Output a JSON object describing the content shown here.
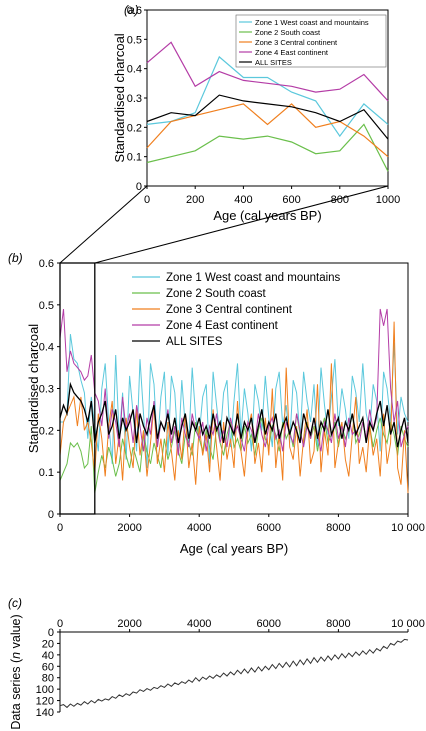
{
  "colors": {
    "zone1": "#5bc8dc",
    "zone2": "#6abf4b",
    "zone3": "#f07f1e",
    "zone4": "#b43ca6",
    "all": "#000000",
    "series": "#333333"
  },
  "chart_data": [
    {
      "panel_label": "(a)",
      "type": "line",
      "xlabel": "Age (cal years BP)",
      "ylabel": "Standardised charcoal",
      "xlim": [
        0,
        1000
      ],
      "ylim": [
        0,
        0.6
      ],
      "xticks": [
        0,
        200,
        400,
        600,
        800,
        1000
      ],
      "yticks": [
        0,
        0.1,
        0.2,
        0.3,
        0.4,
        0.5,
        0.6
      ],
      "legend": "top-right",
      "x": [
        0,
        100,
        200,
        300,
        400,
        500,
        600,
        700,
        800,
        900,
        1000
      ],
      "series": [
        {
          "name": "Zone 1 West coast and mountains",
          "color_key": "zone1",
          "values": [
            0.21,
            0.22,
            0.25,
            0.44,
            0.37,
            0.37,
            0.32,
            0.29,
            0.17,
            0.28,
            0.21
          ]
        },
        {
          "name": "Zone 2 South coast",
          "color_key": "zone2",
          "values": [
            0.08,
            0.1,
            0.12,
            0.17,
            0.16,
            0.17,
            0.15,
            0.11,
            0.12,
            0.21,
            0.05
          ]
        },
        {
          "name": "Zone 3 Central continent",
          "color_key": "zone3",
          "values": [
            0.13,
            0.22,
            0.24,
            0.26,
            0.28,
            0.21,
            0.28,
            0.2,
            0.22,
            0.17,
            0.1
          ]
        },
        {
          "name": "Zone 4 East continent",
          "color_key": "zone4",
          "values": [
            0.42,
            0.49,
            0.34,
            0.39,
            0.36,
            0.35,
            0.34,
            0.32,
            0.33,
            0.38,
            0.29
          ]
        },
        {
          "name": "ALL SITES",
          "color_key": "all",
          "values": [
            0.22,
            0.25,
            0.24,
            0.31,
            0.29,
            0.28,
            0.27,
            0.25,
            0.22,
            0.26,
            0.16
          ]
        }
      ]
    },
    {
      "panel_label": "(b)",
      "type": "line",
      "xlabel": "Age (cal years BP)",
      "ylabel": "Standardised charcoal",
      "xlim": [
        0,
        10000
      ],
      "ylim": [
        0,
        0.6
      ],
      "xticks": [
        0,
        2000,
        4000,
        6000,
        8000,
        10000
      ],
      "xtick_labels": [
        "0",
        "2000",
        "4000",
        "6000",
        "8000",
        "10 000"
      ],
      "yticks": [
        0,
        0.1,
        0.2,
        0.3,
        0.4,
        0.5,
        0.6
      ],
      "legend": "top-right",
      "highlight_range": [
        0,
        1000
      ],
      "x_step": 100,
      "series": [
        {
          "name": "Zone 1 West coast and mountains",
          "color_key": "zone1",
          "values": [
            0.22,
            0.22,
            0.24,
            0.43,
            0.37,
            0.36,
            0.32,
            0.29,
            0.18,
            0.28,
            0.21,
            0.15,
            0.3,
            0.36,
            0.22,
            0.12,
            0.38,
            0.18,
            0.29,
            0.13,
            0.33,
            0.24,
            0.15,
            0.37,
            0.24,
            0.11,
            0.36,
            0.31,
            0.16,
            0.28,
            0.34,
            0.14,
            0.33,
            0.29,
            0.15,
            0.32,
            0.21,
            0.17,
            0.35,
            0.23,
            0.19,
            0.28,
            0.31,
            0.12,
            0.34,
            0.26,
            0.18,
            0.29,
            0.32,
            0.16,
            0.27,
            0.36,
            0.19,
            0.3,
            0.24,
            0.15,
            0.31,
            0.27,
            0.2,
            0.33,
            0.23,
            0.16,
            0.3,
            0.34,
            0.21,
            0.26,
            0.17,
            0.32,
            0.29,
            0.18,
            0.34,
            0.27,
            0.22,
            0.31,
            0.16,
            0.35,
            0.26,
            0.19,
            0.28,
            0.37,
            0.21,
            0.3,
            0.25,
            0.18,
            0.33,
            0.29,
            0.22,
            0.36,
            0.24,
            0.2,
            0.31,
            0.27,
            0.15,
            0.34,
            0.3,
            0.22,
            0.41,
            0.19,
            0.28,
            0.24,
            0.22
          ]
        },
        {
          "name": "Zone 2 South coast",
          "color_key": "zone2",
          "values": [
            0.08,
            0.1,
            0.12,
            0.17,
            0.16,
            0.17,
            0.15,
            0.11,
            0.12,
            0.21,
            0.05,
            0.1,
            0.14,
            0.11,
            0.16,
            0.13,
            0.09,
            0.12,
            0.18,
            0.14,
            0.11,
            0.16,
            0.13,
            0.1,
            0.19,
            0.15,
            0.12,
            0.17,
            0.14,
            0.11,
            0.18,
            0.13,
            0.16,
            0.2,
            0.15,
            0.12,
            0.19,
            0.17,
            0.14,
            0.22,
            0.18,
            0.15,
            0.2,
            0.16,
            0.13,
            0.21,
            0.17,
            0.14,
            0.19,
            0.22,
            0.16,
            0.18,
            0.15,
            0.21,
            0.17,
            0.19,
            0.14,
            0.2,
            0.23,
            0.18,
            0.16,
            0.21,
            0.19,
            0.15,
            0.22,
            0.18,
            0.2,
            0.16,
            0.24,
            0.19,
            0.17,
            0.22,
            0.18,
            0.21,
            0.15,
            0.2,
            0.23,
            0.17,
            0.19,
            0.22,
            0.16,
            0.21,
            0.18,
            0.2,
            0.24,
            0.17,
            0.19,
            0.22,
            0.18,
            0.21,
            0.16,
            0.2,
            0.23,
            0.19,
            0.17,
            0.22,
            0.19,
            0.14,
            0.21,
            0.18,
            0.16
          ]
        },
        {
          "name": "Zone 3 Central continent",
          "color_key": "zone3",
          "values": [
            0.14,
            0.22,
            0.24,
            0.26,
            0.28,
            0.21,
            0.28,
            0.2,
            0.22,
            0.17,
            0.1,
            0.24,
            0.18,
            0.09,
            0.21,
            0.27,
            0.12,
            0.19,
            0.08,
            0.23,
            0.16,
            0.11,
            0.25,
            0.14,
            0.2,
            0.09,
            0.17,
            0.26,
            0.12,
            0.18,
            0.1,
            0.22,
            0.15,
            0.08,
            0.2,
            0.13,
            0.24,
            0.11,
            0.17,
            0.07,
            0.21,
            0.14,
            0.19,
            0.1,
            0.25,
            0.16,
            0.08,
            0.22,
            0.13,
            0.18,
            0.11,
            0.27,
            0.15,
            0.09,
            0.2,
            0.24,
            0.12,
            0.17,
            0.1,
            0.23,
            0.14,
            0.3,
            0.11,
            0.19,
            0.08,
            0.35,
            0.16,
            0.13,
            0.21,
            0.09,
            0.18,
            0.25,
            0.12,
            0.15,
            0.31,
            0.1,
            0.2,
            0.14,
            0.36,
            0.11,
            0.17,
            0.22,
            0.13,
            0.09,
            0.19,
            0.28,
            0.12,
            0.16,
            0.1,
            0.21,
            0.14,
            0.18,
            0.09,
            0.24,
            0.12,
            0.17,
            0.46,
            0.11,
            0.07,
            0.2,
            0.05
          ]
        },
        {
          "name": "Zone 4 East continent",
          "color_key": "zone4",
          "values": [
            0.42,
            0.49,
            0.34,
            0.39,
            0.36,
            0.35,
            0.34,
            0.32,
            0.33,
            0.38,
            0.29,
            0.27,
            0.21,
            0.3,
            0.18,
            0.25,
            0.22,
            0.16,
            0.28,
            0.2,
            0.24,
            0.17,
            0.26,
            0.21,
            0.15,
            0.23,
            0.19,
            0.27,
            0.16,
            0.22,
            0.2,
            0.25,
            0.17,
            0.21,
            0.14,
            0.23,
            0.19,
            0.16,
            0.24,
            0.2,
            0.18,
            0.22,
            0.15,
            0.21,
            0.19,
            0.24,
            0.17,
            0.2,
            0.16,
            0.23,
            0.19,
            0.21,
            0.18,
            0.15,
            0.22,
            0.2,
            0.17,
            0.24,
            0.19,
            0.16,
            0.21,
            0.23,
            0.18,
            0.2,
            0.15,
            0.22,
            0.19,
            0.17,
            0.24,
            0.2,
            0.16,
            0.21,
            0.18,
            0.23,
            0.19,
            0.15,
            0.22,
            0.2,
            0.17,
            0.24,
            0.18,
            0.21,
            0.16,
            0.23,
            0.19,
            0.2,
            0.17,
            0.22,
            0.18,
            0.25,
            0.2,
            0.23,
            0.49,
            0.45,
            0.49,
            0.3,
            0.22,
            0.27,
            0.16,
            0.19,
            0.21
          ]
        },
        {
          "name": "ALL SITES",
          "color_key": "all",
          "values": [
            0.23,
            0.26,
            0.24,
            0.31,
            0.29,
            0.28,
            0.27,
            0.25,
            0.22,
            0.27,
            0.17,
            0.22,
            0.24,
            0.27,
            0.19,
            0.21,
            0.25,
            0.18,
            0.23,
            0.2,
            0.22,
            0.25,
            0.17,
            0.24,
            0.21,
            0.19,
            0.23,
            0.26,
            0.18,
            0.22,
            0.2,
            0.24,
            0.19,
            0.23,
            0.17,
            0.21,
            0.24,
            0.18,
            0.22,
            0.2,
            0.23,
            0.19,
            0.21,
            0.18,
            0.24,
            0.2,
            0.22,
            0.17,
            0.23,
            0.21,
            0.19,
            0.24,
            0.18,
            0.22,
            0.2,
            0.23,
            0.17,
            0.21,
            0.25,
            0.19,
            0.22,
            0.2,
            0.24,
            0.18,
            0.21,
            0.23,
            0.19,
            0.22,
            0.2,
            0.17,
            0.24,
            0.21,
            0.19,
            0.23,
            0.18,
            0.22,
            0.2,
            0.25,
            0.19,
            0.21,
            0.23,
            0.18,
            0.22,
            0.2,
            0.24,
            0.19,
            0.21,
            0.23,
            0.17,
            0.22,
            0.2,
            0.24,
            0.27,
            0.21,
            0.26,
            0.19,
            0.22,
            0.16,
            0.2,
            0.23,
            0.17
          ]
        }
      ]
    },
    {
      "panel_label": "(c)",
      "type": "line",
      "xlabel": "",
      "ylabel": "Data series (n value)",
      "ylabel_parts": [
        "Data series (",
        "n",
        " value)"
      ],
      "xlim": [
        0,
        10000
      ],
      "ylim": [
        140,
        0
      ],
      "x_axis_position": "top",
      "xticks": [
        0,
        2000,
        4000,
        6000,
        8000,
        10000
      ],
      "xtick_labels": [
        "0",
        "2000",
        "4000",
        "6000",
        "8000",
        "10 000"
      ],
      "yticks": [
        0,
        20,
        40,
        60,
        80,
        100,
        120,
        140
      ],
      "x_step": 100,
      "series": [
        {
          "name": "",
          "color_key": "series",
          "values": [
            129,
            127,
            132,
            126,
            130,
            125,
            128,
            122,
            126,
            120,
            124,
            118,
            121,
            117,
            119,
            113,
            116,
            110,
            113,
            108,
            111,
            105,
            107,
            101,
            104,
            99,
            102,
            97,
            99,
            94,
            97,
            91,
            95,
            89,
            92,
            87,
            90,
            84,
            88,
            80,
            86,
            79,
            83,
            77,
            81,
            75,
            79,
            72,
            77,
            70,
            75,
            67,
            73,
            65,
            72,
            63,
            70,
            61,
            68,
            60,
            66,
            57,
            64,
            55,
            62,
            53,
            61,
            51,
            59,
            49,
            57,
            47,
            55,
            45,
            53,
            44,
            51,
            42,
            49,
            40,
            47,
            38,
            45,
            37,
            43,
            35,
            41,
            33,
            39,
            31,
            37,
            29,
            33,
            25,
            29,
            20,
            23,
            16,
            18,
            13,
            14
          ]
        }
      ]
    }
  ]
}
